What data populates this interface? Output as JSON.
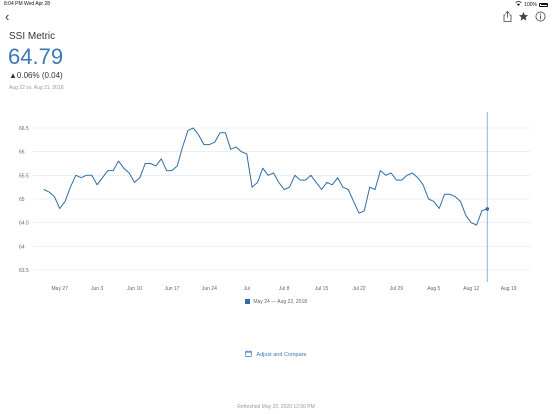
{
  "status_bar": {
    "time": "8:04 PM",
    "date": "Wed Apr 28",
    "battery": "100%"
  },
  "metric": {
    "title": "SSI Metric",
    "value": "64.79",
    "change": "▲0.06% (0.04)",
    "compare": "Aug 22 vs. Aug 21, 2018"
  },
  "legend": {
    "label": "May 24 — Aug 22, 2018"
  },
  "actions": {
    "adjust_compare": "Adjust and Compare"
  },
  "footer": {
    "refreshed": "Refreshed May 20, 2020 12:00 PM"
  },
  "colors": {
    "line": "#2e6da4",
    "value": "#3a78b8",
    "grid": "#dce6f0",
    "marker": "#6aa3d5"
  },
  "chart_data": {
    "type": "line",
    "ylim": [
      63.5,
      66.5
    ],
    "y_ticks": [
      "66.5",
      "66",
      "65.5",
      "65",
      "64.5",
      "64",
      "63.5"
    ],
    "x_ticks": [
      {
        "label": "May 27",
        "day": 3
      },
      {
        "label": "Jun 3",
        "day": 10
      },
      {
        "label": "Jun 10",
        "day": 17
      },
      {
        "label": "Jun 17",
        "day": 24
      },
      {
        "label": "Jun 24",
        "day": 31
      },
      {
        "label": "Jul",
        "day": 38
      },
      {
        "label": "Jul 8",
        "day": 45
      },
      {
        "label": "Jul 15",
        "day": 52
      },
      {
        "label": "Jul 22",
        "day": 59
      },
      {
        "label": "Jul 29",
        "day": 66
      },
      {
        "label": "Aug 5",
        "day": 73
      },
      {
        "label": "Aug 12",
        "day": 80
      },
      {
        "label": "Aug 19",
        "day": 87
      }
    ],
    "x_range": [
      -2,
      91
    ],
    "series": [
      {
        "start": "2018-05-24",
        "values": [
          65.2,
          65.15,
          65.05,
          64.8,
          64.95,
          65.25,
          65.5,
          65.45,
          65.5,
          65.5,
          65.3,
          65.45,
          65.6,
          65.6,
          65.8,
          65.65,
          65.55,
          65.35,
          65.45,
          65.75,
          65.75,
          65.7,
          65.85,
          65.6,
          65.6,
          65.7,
          66.1,
          66.45,
          66.5,
          66.35,
          66.15,
          66.15,
          66.2,
          66.4,
          66.4,
          66.05,
          66.1,
          66.0,
          65.95,
          65.25,
          65.35,
          65.65,
          65.5,
          65.55,
          65.35,
          65.2,
          65.25,
          65.5,
          65.4,
          65.4,
          65.5,
          65.35,
          65.2,
          65.35,
          65.3,
          65.45,
          65.25,
          65.2,
          64.95,
          64.7,
          64.75,
          65.25,
          65.2,
          65.6,
          65.5,
          65.55,
          65.4,
          65.4,
          65.5,
          65.55,
          65.45,
          65.3,
          65.0,
          64.95,
          64.8,
          65.1,
          65.1,
          65.05,
          64.95,
          64.65,
          64.5,
          64.45,
          64.75,
          64.79
        ]
      }
    ],
    "highlight": {
      "date": "Aug 22",
      "value": 64.79
    }
  }
}
